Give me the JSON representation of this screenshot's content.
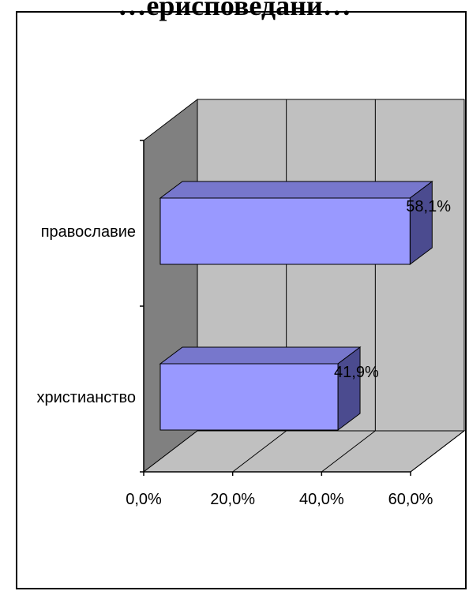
{
  "chart_data": {
    "type": "bar",
    "orientation": "horizontal",
    "style": "3d",
    "title": "…ерисповедани…",
    "categories": [
      "православие",
      "христианство"
    ],
    "values": [
      58.1,
      41.9
    ],
    "value_labels": [
      "58,1%",
      "41,9%"
    ],
    "xlim": [
      0,
      60
    ],
    "x_ticks": [
      "0,0%",
      "20,0%",
      "40,0%",
      "60,0%"
    ],
    "grid": true,
    "legend": "none",
    "colors": {
      "bar_front": "#9999FF",
      "bar_top": "#7777CC",
      "bar_side": "#4B4B8F",
      "back_wall": "#C0C0C0",
      "side_wall": "#808080",
      "floor": "#C0C0C0"
    }
  }
}
